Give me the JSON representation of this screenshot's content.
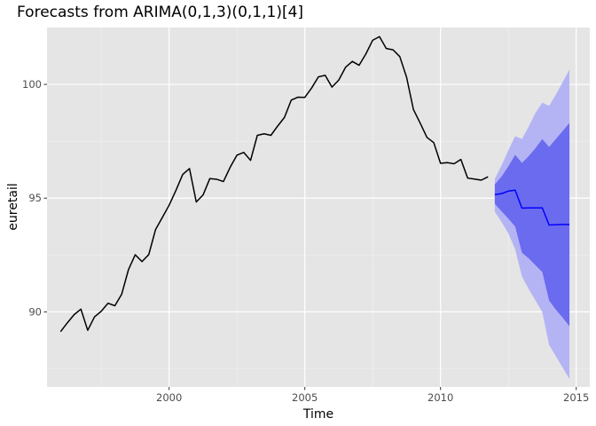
{
  "chart_data": {
    "type": "line",
    "title": "Forecasts from ARIMA(0,1,3)(0,1,1)[4]",
    "xlabel": "Time",
    "ylabel": "euretail",
    "xlim": [
      1995.5,
      2015.5
    ],
    "ylim": [
      86.7,
      102.5
    ],
    "x_ticks": [
      2000,
      2005,
      2010,
      2015
    ],
    "x_tick_labels": [
      "2000",
      "2005",
      "2010",
      "2015"
    ],
    "y_ticks": [
      90,
      95,
      100
    ],
    "y_tick_labels": [
      "90",
      "95",
      "100"
    ],
    "grid": true,
    "legend": "none",
    "colors": {
      "panel": "#e5e5e5",
      "grid_major": "#ffffff",
      "series": "#000000",
      "forecast": "#0000ff",
      "pi80": "#6b6bef",
      "pi95": "#b4b4f5"
    },
    "series": [
      {
        "x": [
          1996.0,
          1996.25,
          1996.5,
          1996.75,
          1997.0,
          1997.25,
          1997.5,
          1997.75,
          1998.0,
          1998.25,
          1998.5,
          1998.75,
          1999.0,
          1999.25,
          1999.5,
          1999.75,
          2000.0,
          2000.25,
          2000.5,
          2000.75,
          2001.0,
          2001.25,
          2001.5,
          2001.75,
          2002.0,
          2002.25,
          2002.5,
          2002.75,
          2003.0,
          2003.25,
          2003.5,
          2003.75,
          2004.0,
          2004.25,
          2004.5,
          2004.75,
          2005.0,
          2005.25,
          2005.5,
          2005.75,
          2006.0,
          2006.25,
          2006.5,
          2006.75,
          2007.0,
          2007.25,
          2007.5,
          2007.75,
          2008.0,
          2008.25,
          2008.5,
          2008.75,
          2009.0,
          2009.25,
          2009.5,
          2009.75,
          2010.0,
          2010.25,
          2010.5,
          2010.75,
          2011.0,
          2011.25,
          2011.5,
          2011.75
        ],
        "values": [
          89.13,
          89.52,
          89.88,
          90.12,
          89.19,
          89.78,
          90.03,
          90.38,
          90.27,
          90.77,
          91.85,
          92.51,
          92.21,
          92.52,
          93.62,
          94.15,
          94.69,
          95.34,
          96.04,
          96.3,
          94.83,
          95.14,
          95.86,
          95.83,
          95.73,
          96.36,
          96.89,
          97.01,
          96.66,
          97.76,
          97.83,
          97.76,
          98.17,
          98.55,
          99.31,
          99.44,
          99.43,
          99.84,
          100.33,
          100.4,
          99.88,
          100.19,
          100.75,
          101.01,
          100.84,
          101.34,
          101.94,
          102.1,
          101.58,
          101.52,
          101.22,
          100.31,
          98.9,
          98.3,
          97.67,
          97.44,
          96.53,
          96.56,
          96.51,
          96.7,
          95.88,
          95.84,
          95.79,
          95.94
        ]
      }
    ],
    "forecast": {
      "x": [
        2012.0,
        2012.25,
        2012.5,
        2012.75,
        2013.0,
        2013.25,
        2013.5,
        2013.75,
        2014.0,
        2014.25,
        2014.5,
        2014.75
      ],
      "mean": [
        95.15,
        95.2,
        95.31,
        95.35,
        94.56,
        94.57,
        94.57,
        94.57,
        93.82,
        93.83,
        93.84,
        93.84
      ],
      "lo80": [
        94.75,
        94.42,
        94.1,
        93.75,
        92.6,
        92.35,
        92.05,
        91.75,
        90.5,
        90.1,
        89.75,
        89.37
      ],
      "hi80": [
        95.6,
        95.95,
        96.4,
        96.9,
        96.55,
        96.85,
        97.2,
        97.6,
        97.25,
        97.6,
        97.95,
        98.3
      ],
      "lo95": [
        94.4,
        93.95,
        93.45,
        92.75,
        91.55,
        91.0,
        90.5,
        89.98,
        88.55,
        88.05,
        87.55,
        87.05
      ],
      "hi95": [
        95.85,
        96.45,
        97.1,
        97.72,
        97.6,
        98.15,
        98.75,
        99.2,
        99.05,
        99.55,
        100.1,
        100.65
      ]
    }
  }
}
